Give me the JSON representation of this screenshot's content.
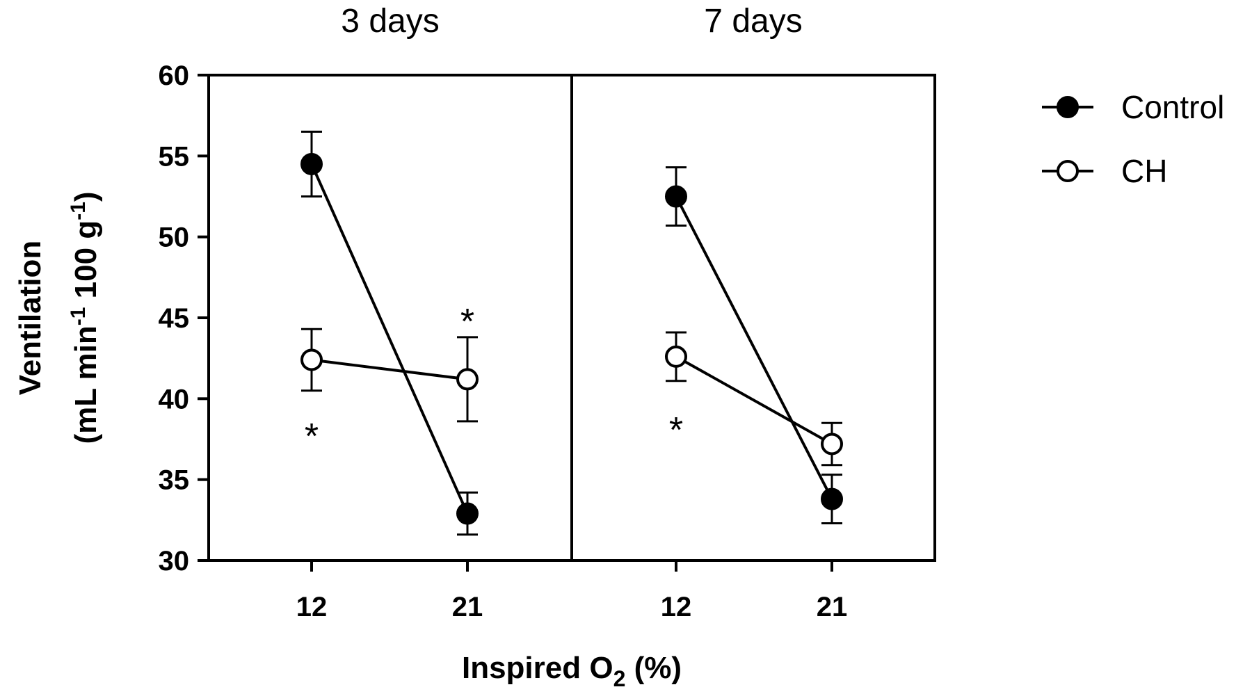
{
  "chart_data": {
    "type": "line",
    "y_axis": {
      "label_line1": "Ventilation",
      "label_line2_parts": [
        "(mL min",
        "-1",
        " 100 g",
        "-1",
        ")"
      ],
      "range": [
        30,
        60
      ],
      "ticks": [
        30,
        35,
        40,
        45,
        50,
        55,
        60
      ],
      "tick_labels": [
        "30",
        "35",
        "40",
        "45",
        "50",
        "55",
        "60"
      ]
    },
    "x_axis": {
      "label_parts": [
        "Inspired O",
        "2",
        " (%)"
      ],
      "categories": [
        "12",
        "21"
      ]
    },
    "legend": {
      "placement": "top-right",
      "entries": [
        {
          "name": "Control",
          "marker": "filled-circle"
        },
        {
          "name": "CH",
          "marker": "open-circle"
        }
      ]
    },
    "panels": [
      {
        "title": "3 days",
        "series": [
          {
            "name": "Control",
            "values": [
              54.5,
              32.9
            ],
            "errors": [
              2.0,
              1.3
            ]
          },
          {
            "name": "CH",
            "values": [
              42.4,
              41.2
            ],
            "errors": [
              1.9,
              2.6
            ]
          }
        ],
        "annotations": [
          {
            "text": "*",
            "category": "12",
            "y": 38.2
          },
          {
            "text": "*",
            "category": "21",
            "y": 45.3
          }
        ]
      },
      {
        "title": "7 days",
        "series": [
          {
            "name": "Control",
            "values": [
              52.5,
              33.8
            ],
            "errors": [
              1.8,
              1.5
            ]
          },
          {
            "name": "CH",
            "values": [
              42.6,
              37.2
            ],
            "errors": [
              1.5,
              1.3
            ]
          }
        ],
        "annotations": [
          {
            "text": "*",
            "category": "12",
            "y": 38.6
          }
        ]
      }
    ]
  }
}
